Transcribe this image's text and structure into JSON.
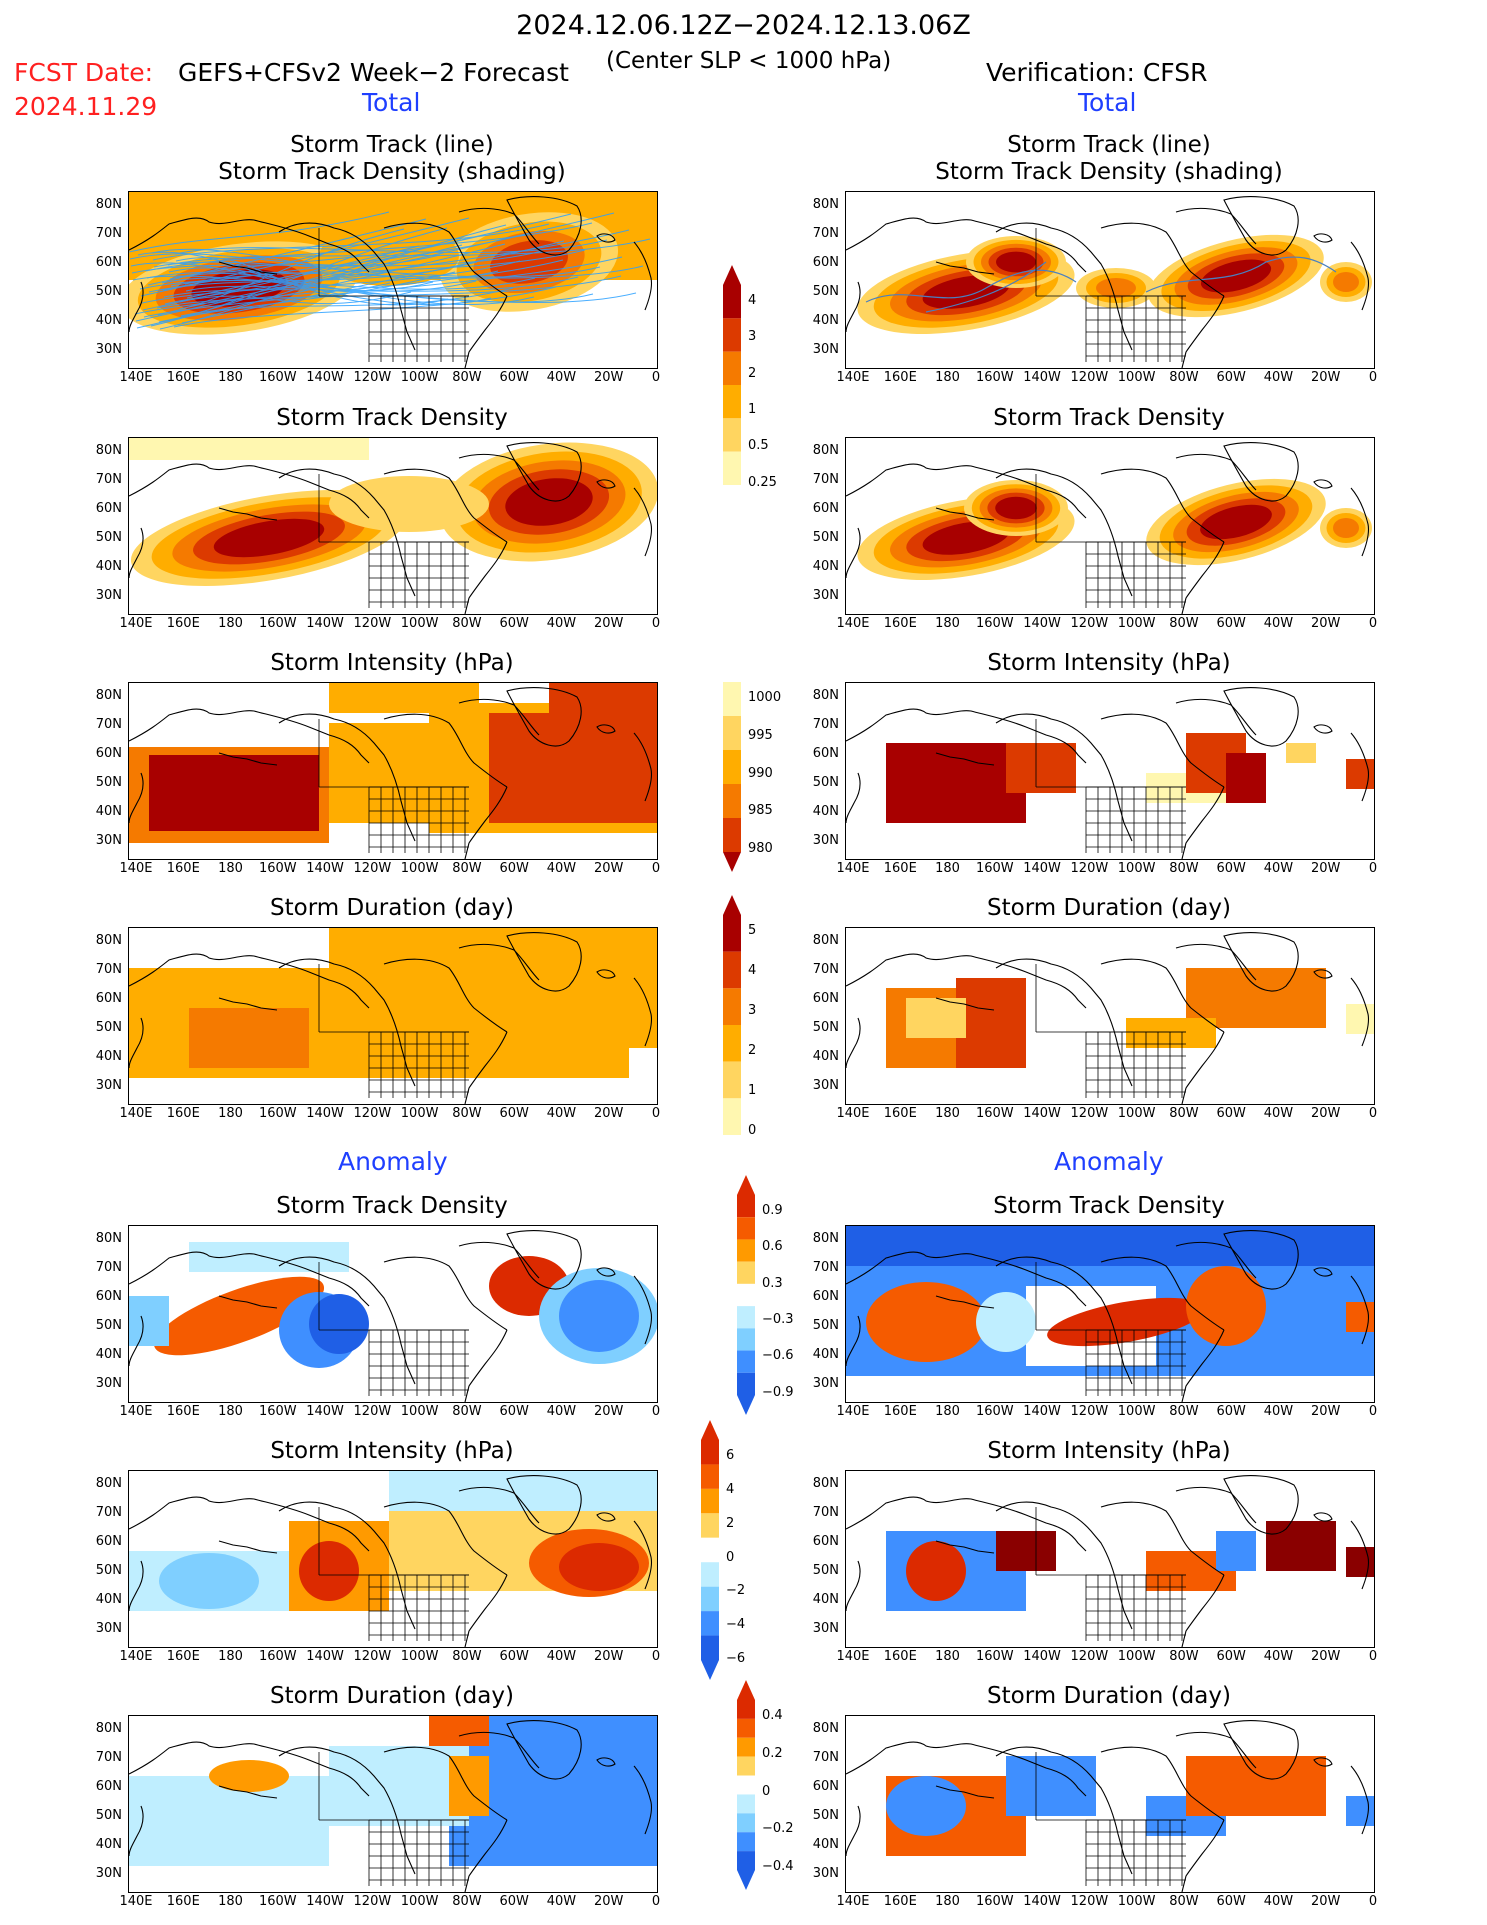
{
  "header": {
    "date_range": "2024.12.06.12Z−2024.12.13.06Z",
    "fcst_date_label": "FCST Date:",
    "fcst_date_value": "2024.11.29",
    "product": "GEFS+CFSv2 Week−2 Forecast",
    "criterion": "(Center SLP < 1000 hPa)",
    "verification": "Verification: CFSR"
  },
  "sections": {
    "total_left": "Total",
    "total_right": "Total",
    "anomaly_left": "Anomaly",
    "anomaly_right": "Anomaly"
  },
  "panel_titles": {
    "track_line": "Storm Track (line)",
    "track_shading": "Storm Track Density (shading)",
    "density": "Storm Track Density",
    "intensity": "Storm Intensity (hPa)",
    "duration": "Storm Duration (day)"
  },
  "axes": {
    "lon_labels": [
      "140E",
      "160E",
      "180",
      "160W",
      "140W",
      "120W",
      "100W",
      "80W",
      "60W",
      "40W",
      "20W",
      "0"
    ],
    "lat_labels": [
      "80N",
      "70N",
      "60N",
      "50N",
      "40N",
      "30N"
    ]
  },
  "colorbars": {
    "density": [
      "4",
      "3",
      "2",
      "1",
      "0.5",
      "0.25"
    ],
    "intensity": [
      "1000",
      "995",
      "990",
      "985",
      "980"
    ],
    "duration": [
      "5",
      "4",
      "3",
      "2",
      "1",
      "0"
    ],
    "density_anom": [
      "0.9",
      "0.6",
      "0.3",
      "−0.3",
      "−0.6",
      "−0.9"
    ],
    "intensity_anom": [
      "6",
      "4",
      "2",
      "0",
      "−2",
      "−4",
      "−6"
    ],
    "duration_anom": [
      "0.4",
      "0.2",
      "0",
      "−0.2",
      "−0.4"
    ]
  },
  "colors": {
    "total_scale": [
      "#fff7b0",
      "#ffd560",
      "#ffad00",
      "#f57a00",
      "#dc3a00",
      "#a80000"
    ],
    "anom_pos": [
      "#ffd560",
      "#ff9a00",
      "#f55b00",
      "#dc2a00"
    ],
    "anom_neg": [
      "#bfeeff",
      "#7fcfff",
      "#3f8fff",
      "#1f5fe6"
    ],
    "track_lines": "#2aa0ff",
    "title_red": "#ff2020",
    "section_blue": "#1f3fff"
  }
}
